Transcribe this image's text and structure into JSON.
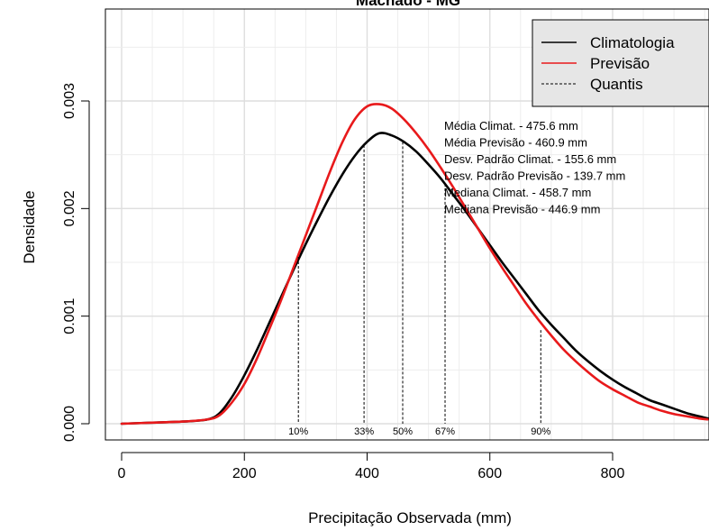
{
  "chart_data": {
    "type": "line",
    "title": "Machado - MG",
    "xlabel": "Precipitação Observada (mm)",
    "ylabel": "Densidade",
    "xlim": [
      0,
      950
    ],
    "ylim": [
      0,
      0.0035
    ],
    "x_ticks": [
      0,
      200,
      400,
      600,
      800
    ],
    "x_tick_labels": [
      "0",
      "200",
      "400",
      "600",
      "800"
    ],
    "y_ticks": [
      0.0,
      0.001,
      0.002,
      0.003
    ],
    "y_tick_labels": [
      "0.000",
      "0.001",
      "0.002",
      "0.003"
    ],
    "grid": true,
    "legend_position": "top-right",
    "legend": [
      {
        "label": "Climatologia",
        "color": "#000000",
        "style": "solid"
      },
      {
        "label": "Previsão",
        "color": "#e8191b",
        "style": "solid"
      },
      {
        "label": "Quantis",
        "color": "#000000",
        "style": "dashed"
      }
    ],
    "series": [
      {
        "name": "Climatologia",
        "color": "#000000",
        "x": [
          0,
          50,
          100,
          140,
          160,
          180,
          200,
          220,
          240,
          260,
          280,
          300,
          320,
          340,
          360,
          380,
          400,
          420,
          440,
          460,
          480,
          500,
          520,
          540,
          560,
          580,
          600,
          620,
          640,
          660,
          680,
          700,
          720,
          740,
          760,
          780,
          800,
          820,
          840,
          860,
          880,
          900,
          920,
          940,
          955
        ],
        "y": [
          0.0,
          1e-05,
          2e-05,
          4e-05,
          0.0001,
          0.00025,
          0.00045,
          0.00068,
          0.00093,
          0.00118,
          0.00143,
          0.00167,
          0.0019,
          0.00212,
          0.00232,
          0.00249,
          0.00262,
          0.0027,
          0.00268,
          0.00262,
          0.00253,
          0.00241,
          0.00228,
          0.00213,
          0.00198,
          0.00182,
          0.00166,
          0.0015,
          0.00135,
          0.0012,
          0.00105,
          0.00092,
          0.0008,
          0.00068,
          0.00058,
          0.00049,
          0.00041,
          0.00034,
          0.00028,
          0.00022,
          0.00018,
          0.00014,
          0.0001,
          7e-05,
          5e-05
        ]
      },
      {
        "name": "Previsão",
        "color": "#e8191b",
        "x": [
          0,
          50,
          100,
          140,
          160,
          180,
          200,
          220,
          240,
          260,
          280,
          300,
          320,
          340,
          360,
          380,
          400,
          420,
          440,
          460,
          480,
          500,
          520,
          540,
          560,
          580,
          600,
          620,
          640,
          660,
          680,
          700,
          720,
          740,
          760,
          780,
          800,
          820,
          840,
          860,
          880,
          900,
          920,
          940,
          955
        ],
        "y": [
          0.0,
          1e-05,
          2e-05,
          4e-05,
          8e-05,
          0.0002,
          0.00037,
          0.0006,
          0.00087,
          0.00115,
          0.00145,
          0.00175,
          0.00205,
          0.00235,
          0.00262,
          0.00283,
          0.00295,
          0.00297,
          0.00293,
          0.00283,
          0.0027,
          0.00255,
          0.00238,
          0.0022,
          0.00201,
          0.00182,
          0.00163,
          0.00145,
          0.00128,
          0.00111,
          0.00096,
          0.00082,
          0.00069,
          0.00058,
          0.00048,
          0.00039,
          0.00032,
          0.00026,
          0.0002,
          0.00016,
          0.00012,
          9e-05,
          7e-05,
          5e-05,
          4e-05
        ]
      }
    ],
    "quantiles": [
      {
        "label": "10%",
        "x": 288,
        "y": 0.00155
      },
      {
        "label": "33%",
        "x": 395,
        "y": 0.00259
      },
      {
        "label": "50%",
        "x": 458,
        "y": 0.00262
      },
      {
        "label": "67%",
        "x": 527,
        "y": 0.00223
      },
      {
        "label": "90%",
        "x": 683,
        "y": 0.00087
      }
    ],
    "annotations": [
      "Média Climat. - 475.6 mm",
      "Média Previsão - 460.9 mm",
      "Desv. Padrão Climat. -  155.6  mm",
      "Desv. Padrão Previsão -  139.7  mm",
      "Mediana Climat. -  458.7  mm",
      "Mediana Previsão -  446.9  mm"
    ]
  }
}
